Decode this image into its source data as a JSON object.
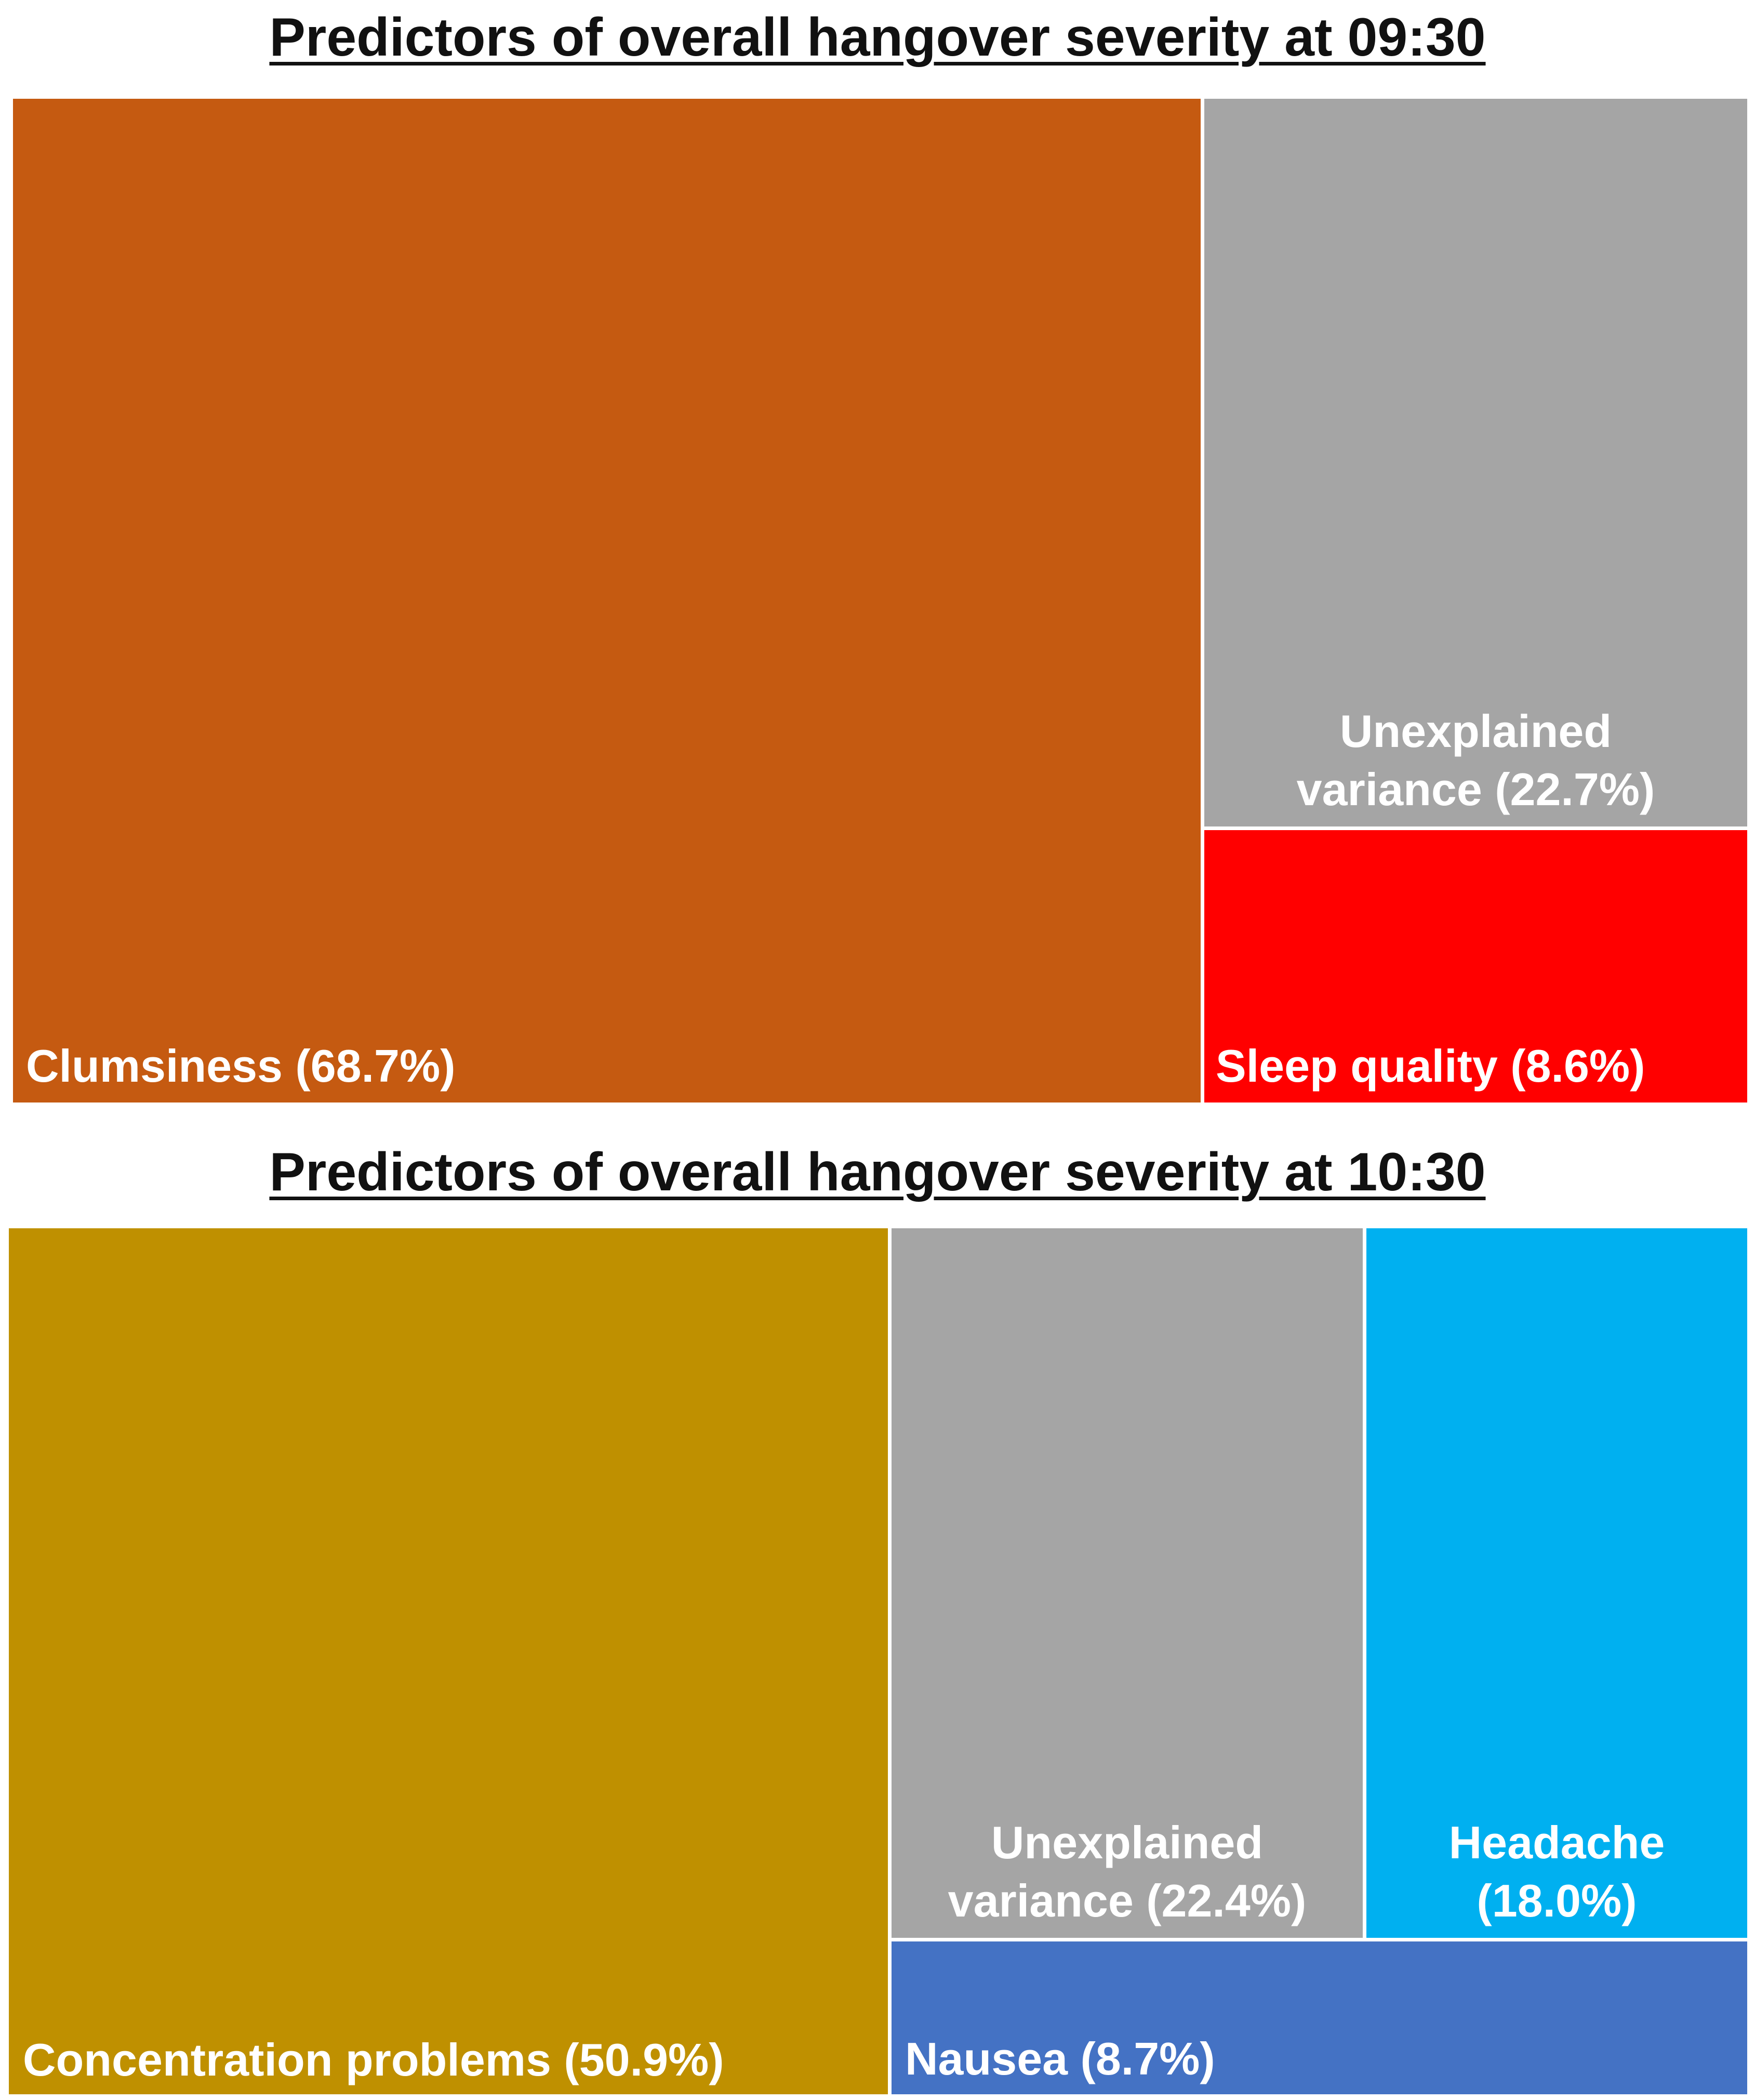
{
  "colors": {
    "clumsiness": "#C55A11",
    "unexplained": "#A5A5A5",
    "sleep_quality": "#FF0000",
    "concentration": "#BF9000",
    "headache": "#00B0F0",
    "nausea": "#4472C4",
    "label_text": "#FFFFFF"
  },
  "chart_data": [
    {
      "type": "treemap",
      "title": "Predictors of overall hangover severity at 09:30",
      "segments": [
        {
          "key": "clumsiness",
          "name": "Clumsiness",
          "value": 68.7,
          "label": "Clumsiness (68.7%)"
        },
        {
          "key": "unexplained",
          "name": "Unexplained variance",
          "value": 22.7,
          "label_line1": "Unexplained",
          "label_line2": "variance (22.7%)"
        },
        {
          "key": "sleep_quality",
          "name": "Sleep quality",
          "value": 8.6,
          "label": "Sleep quality (8.6%)"
        }
      ]
    },
    {
      "type": "treemap",
      "title": "Predictors of overall hangover severity at 10:30",
      "segments": [
        {
          "key": "concentration",
          "name": "Concentration problems",
          "value": 50.9,
          "label": "Concentration problems (50.9%)"
        },
        {
          "key": "unexplained",
          "name": "Unexplained variance",
          "value": 22.4,
          "label_line1": "Unexplained",
          "label_line2": "variance (22.4%)"
        },
        {
          "key": "headache",
          "name": "Headache",
          "value": 18.0,
          "label_line1": "Headache",
          "label_line2": "(18.0%)"
        },
        {
          "key": "nausea",
          "name": "Nausea",
          "value": 8.7,
          "label": "Nausea (8.7%)"
        }
      ]
    }
  ]
}
